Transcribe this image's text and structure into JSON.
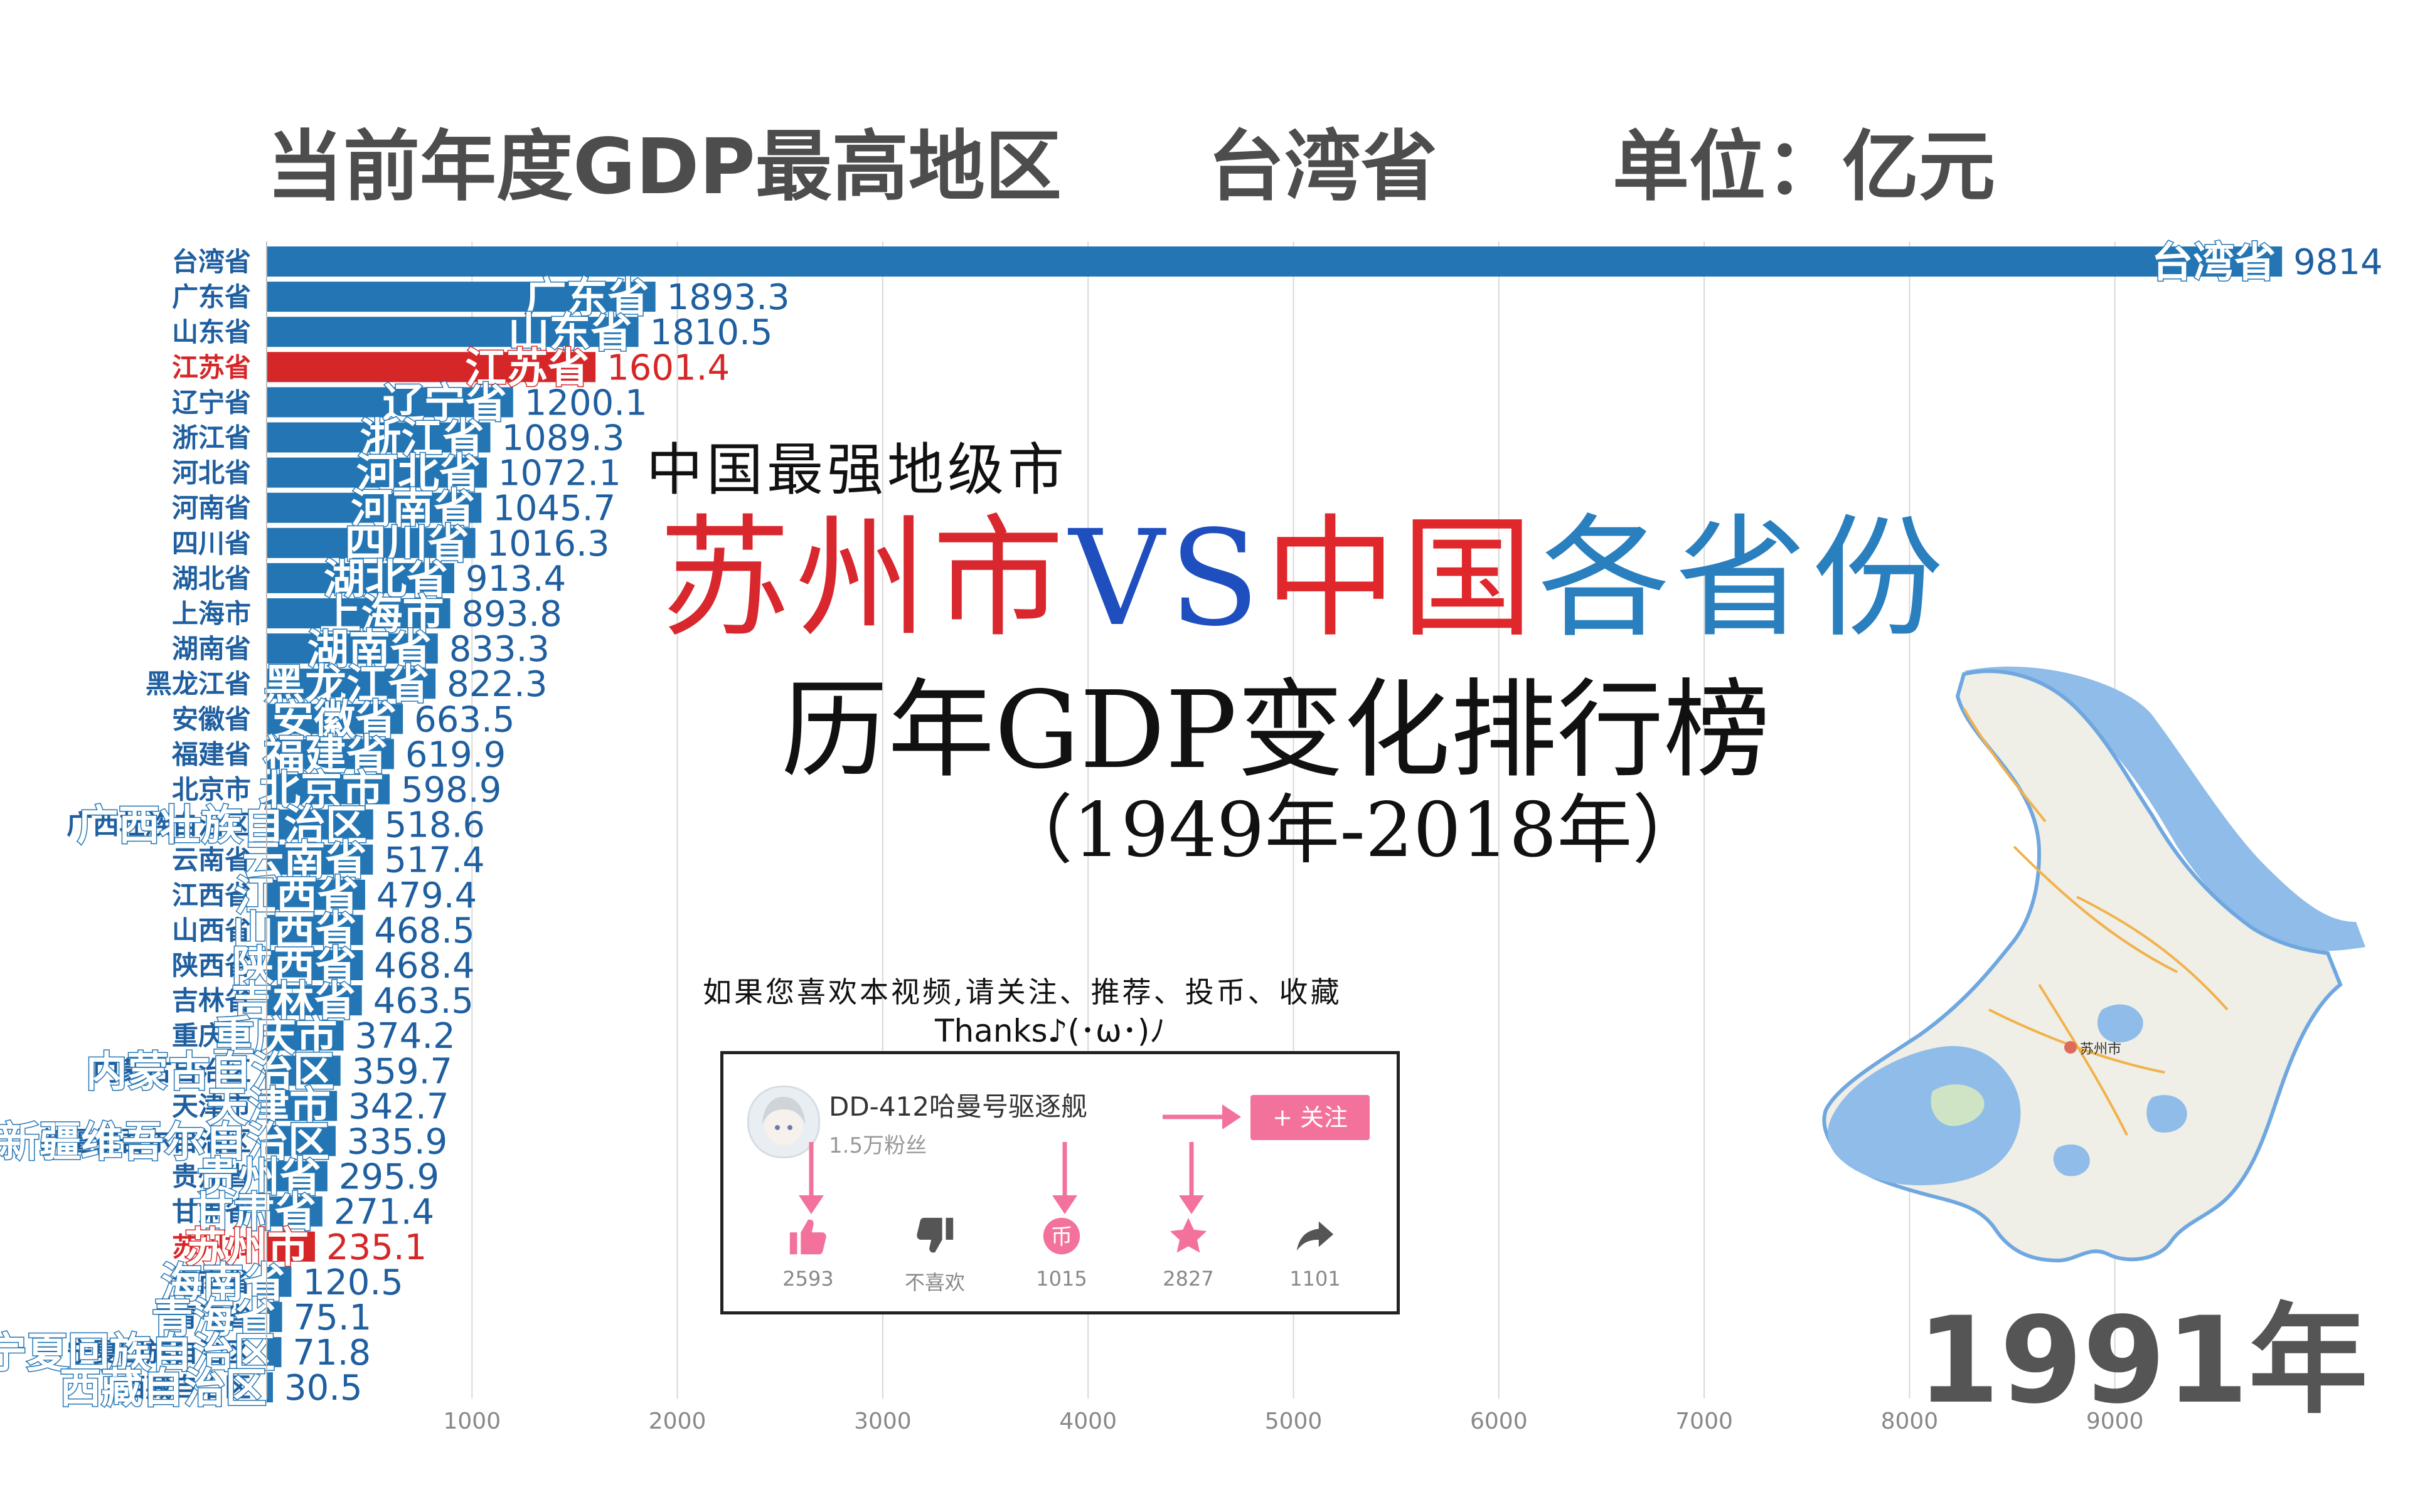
{
  "header": {
    "top_label": "当前年度GDP最高地区",
    "top_region": "台湾省",
    "unit": "单位：亿元"
  },
  "overlay": {
    "line1": "中国最强地级市",
    "title_part1": "苏州市",
    "title_part2": "VS",
    "title_part3": "中国",
    "title_part4": "各省份",
    "line3": "历年GDP变化排行榜",
    "line4": "（1949年-2018年）",
    "request": "如果您喜欢本视频,请关注、推荐、投币、收藏",
    "thanks": "Thanks♪(･ω･)ﾉ"
  },
  "card": {
    "name": "DD-412哈曼号驱逐舰",
    "fans": "1.5万粉丝",
    "follow": "+ 关注",
    "actions": [
      {
        "icon": "thumbs-up-icon",
        "label": "2593"
      },
      {
        "icon": "thumbs-down-icon",
        "label": "不喜欢"
      },
      {
        "icon": "coin-icon",
        "label": "1015"
      },
      {
        "icon": "star-icon",
        "label": "2827"
      },
      {
        "icon": "share-icon",
        "label": "1101"
      }
    ]
  },
  "map": {
    "city_label": "苏州市"
  },
  "year": "1991年",
  "colors": {
    "bar": "#2375b3",
    "highlight": "#d62728",
    "label": "#1f5fa0",
    "grid": "#d8d8d8",
    "title_red": "#d9272e",
    "title_blue": "#1f4fbf",
    "title_teal": "#2a7fbf",
    "follow": "#f2729c"
  },
  "chart_data": {
    "type": "bar",
    "orientation": "horizontal",
    "year": "1991年",
    "categories": [
      "台湾省",
      "广东省",
      "山东省",
      "江苏省",
      "辽宁省",
      "浙江省",
      "河北省",
      "河南省",
      "四川省",
      "湖北省",
      "上海市",
      "湖南省",
      "黑龙江省",
      "安徽省",
      "福建省",
      "北京市",
      "广西壮族自治区",
      "云南省",
      "江西省",
      "山西省",
      "陕西省",
      "吉林省",
      "重庆市",
      "内蒙古自治区",
      "天津市",
      "新疆维吾尔自治区",
      "贵州省",
      "甘肃省",
      "苏州市",
      "海南省",
      "青海省",
      "宁夏回族自治区",
      "西藏自治区"
    ],
    "values": [
      9814,
      1893.3,
      1810.5,
      1601.4,
      1200.1,
      1089.3,
      1072.1,
      1045.7,
      1016.3,
      913.4,
      893.8,
      833.3,
      822.3,
      663.5,
      619.9,
      598.9,
      518.6,
      517.4,
      479.4,
      468.5,
      468.4,
      463.5,
      374.2,
      359.7,
      342.7,
      335.9,
      295.9,
      271.4,
      235.1,
      120.5,
      75.1,
      71.8,
      30.5
    ],
    "value_labels": [
      "9814",
      "1893.3",
      "1810.5",
      "1601.4",
      "1200.1",
      "1089.3",
      "1072.1",
      "1045.7",
      "1016.3",
      "913.4",
      "893.8",
      "833.3",
      "822.3",
      "663.5",
      "619.9",
      "598.9",
      "518.6",
      "517.4",
      "479.4",
      "468.5",
      "468.4",
      "463.5",
      "374.2",
      "359.7",
      "342.7",
      "335.9",
      "295.9",
      "271.4",
      "235.1",
      "120.5",
      "75.1",
      "71.8",
      "30.5"
    ],
    "highlight": [
      "江苏省",
      "苏州市"
    ],
    "xticks": [
      1000,
      2000,
      3000,
      4000,
      5000,
      6000,
      7000,
      8000,
      9000
    ],
    "xlim": [
      0,
      9800
    ],
    "grid": true
  }
}
